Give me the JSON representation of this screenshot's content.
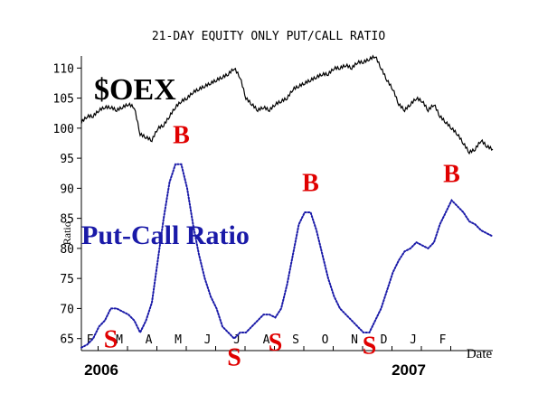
{
  "chart_data": {
    "type": "line",
    "title": "21-DAY EQUITY ONLY PUT/CALL RATIO",
    "ylabel": "Ratio",
    "xlabel": "Date",
    "ylim": [
      63,
      112
    ],
    "yticks": [
      65,
      70,
      75,
      80,
      85,
      90,
      95,
      100,
      105,
      110
    ],
    "x_tick_labels": [
      "F",
      "M",
      "A",
      "M",
      "J",
      "J",
      "A",
      "S",
      "O",
      "N",
      "D",
      "J",
      "F"
    ],
    "year_labels": [
      "2006",
      "2007"
    ],
    "series": [
      {
        "name": "$OEX",
        "style": "solid",
        "color": "#000000",
        "x": [
          0,
          0.2,
          0.4,
          0.6,
          0.8,
          1,
          1.2,
          1.4,
          1.6,
          1.8,
          2,
          2.2,
          2.4,
          2.6,
          2.8,
          3,
          3.2,
          3.4,
          3.6,
          3.8,
          4,
          4.2,
          4.4,
          4.6,
          4.8,
          5,
          5.2,
          5.4,
          5.6,
          5.8,
          6,
          6.2,
          6.4,
          6.6,
          6.8,
          7,
          7.2,
          7.4,
          7.6,
          7.8,
          8,
          8.2,
          8.4,
          8.6,
          8.8,
          9,
          9.2,
          9.4,
          9.6,
          9.8,
          10,
          10.2,
          10.4,
          10.6,
          10.8,
          11,
          11.2,
          11.4,
          11.6,
          11.8,
          12,
          12.2,
          12.4,
          12.6,
          12.8,
          13,
          13.2,
          13.4,
          13.6,
          13.8,
          14
        ],
        "values": [
          101,
          102,
          102,
          103,
          103.5,
          103.5,
          103,
          103.5,
          104,
          103.5,
          99,
          98.5,
          98,
          100,
          100.5,
          102,
          103.5,
          104.5,
          105,
          106,
          106.5,
          107,
          107.5,
          108,
          108.5,
          109,
          110,
          108.5,
          105,
          104,
          103,
          103.5,
          103,
          104,
          104.5,
          105,
          106.5,
          107,
          107.5,
          108,
          108.5,
          109,
          109,
          110,
          110,
          110.5,
          110,
          111,
          111,
          111.5,
          112,
          110,
          108,
          106.5,
          104,
          103,
          104,
          105,
          104.5,
          103,
          104,
          102,
          101,
          100,
          99,
          97.5,
          96,
          96.5,
          98,
          97,
          96.5
        ],
        "label": "$OEX"
      },
      {
        "name": "Put-Call Ratio",
        "style": "dotted",
        "color": "#1a1aa8",
        "x": [
          0,
          0.2,
          0.4,
          0.6,
          0.8,
          1,
          1.2,
          1.4,
          1.6,
          1.8,
          2,
          2.2,
          2.4,
          2.6,
          2.8,
          3,
          3.2,
          3.4,
          3.6,
          3.8,
          4,
          4.2,
          4.4,
          4.6,
          4.8,
          5,
          5.2,
          5.4,
          5.6,
          5.8,
          6,
          6.2,
          6.4,
          6.6,
          6.8,
          7,
          7.2,
          7.4,
          7.6,
          7.8,
          8,
          8.2,
          8.4,
          8.6,
          8.8,
          9,
          9.2,
          9.4,
          9.6,
          9.8,
          10,
          10.2,
          10.4,
          10.6,
          10.8,
          11,
          11.2,
          11.4,
          11.6,
          11.8,
          12,
          12.2,
          12.4,
          12.6,
          12.8,
          13,
          13.2,
          13.4,
          13.6,
          13.8,
          14
        ],
        "values": [
          63.5,
          64,
          65,
          67,
          68,
          70,
          70,
          69.5,
          69,
          68,
          66,
          68,
          71,
          78,
          85,
          91,
          94,
          94,
          90,
          84,
          79,
          75,
          72,
          70,
          67,
          66,
          65,
          66,
          66,
          67,
          68,
          69,
          69,
          68.5,
          70,
          74,
          79,
          84,
          86,
          86,
          83,
          79,
          75,
          72,
          70,
          69,
          68,
          67,
          66,
          66,
          68,
          70,
          73,
          76,
          78,
          79.5,
          80,
          81,
          80.5,
          80,
          81,
          84,
          86,
          88,
          87,
          86,
          84.5,
          84,
          83,
          82.5,
          82
        ],
        "label": "Put-Call Ratio"
      }
    ],
    "annotations": {
      "oex_label": "$OEX",
      "pcr_label": "Put-Call Ratio",
      "buy_signals": [
        {
          "text": "B",
          "x": 3.4,
          "y": 97.5
        },
        {
          "text": "B",
          "x": 7.8,
          "y": 89.5
        },
        {
          "text": "B",
          "x": 12.6,
          "y": 91.0
        }
      ],
      "sell_signals": [
        {
          "text": "S",
          "x": 1.0,
          "y": 63.5
        },
        {
          "text": "S",
          "x": 5.2,
          "y": 60.5
        },
        {
          "text": "S",
          "x": 6.6,
          "y": 63.0
        },
        {
          "text": "S",
          "x": 9.8,
          "y": 62.5
        }
      ]
    },
    "grid": false,
    "legend": "none"
  }
}
